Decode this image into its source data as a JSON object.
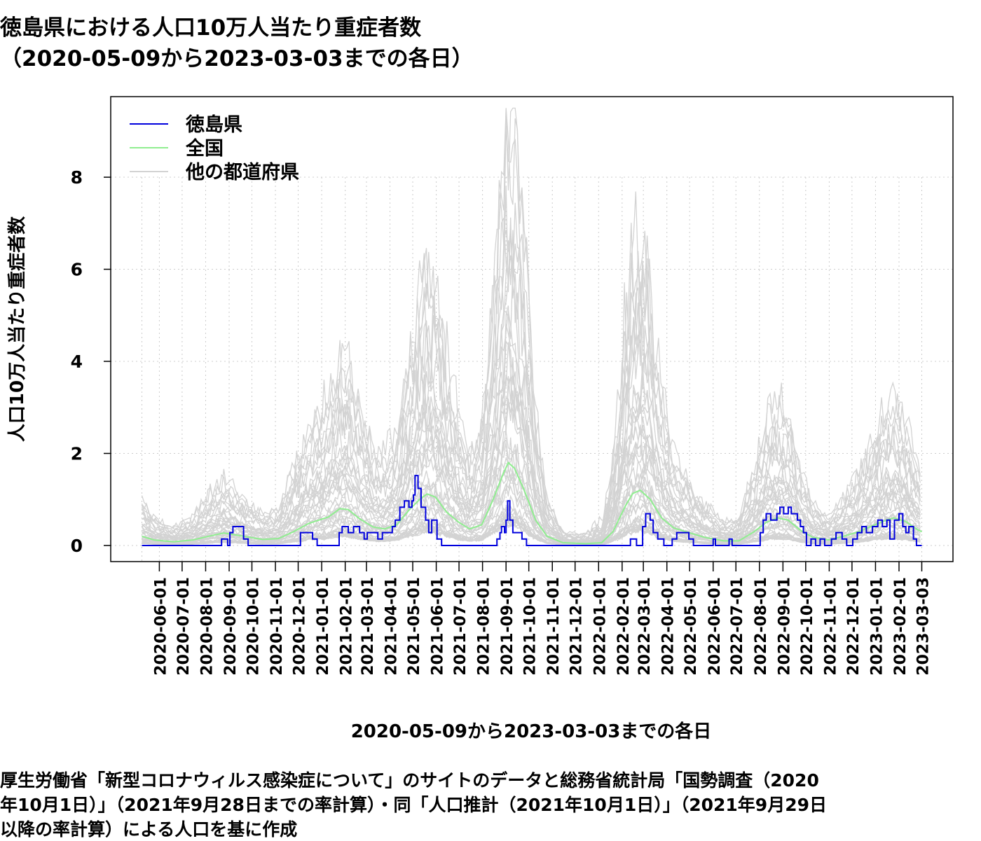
{
  "title_line1": "徳島県における人口10万人当たり重症者数",
  "title_line2": "（2020-05-09から2023-03-03までの各日）",
  "source_note": [
    "厚生労働省「新型コロナウィルス感染症について」のサイトのデータと総務省統計局「国勢調査（2020",
    "年10月1日）」（2021年9月28日までの率計算）・同「人口推計（2021年10月1日）」（2021年9月29日",
    "以降の率計算）による人口を基に作成"
  ],
  "chart_data": {
    "type": "line",
    "xlabel": "2020-05-09から2023-03-03までの各日",
    "ylabel": "人口10万人当たり重症者数",
    "x_range": [
      "2020-05-09",
      "2023-03-03"
    ],
    "ylim": [
      -0.35,
      9.75
    ],
    "yticks": [
      0,
      2,
      4,
      6,
      8
    ],
    "xticks": [
      "2020-06-01",
      "2020-07-01",
      "2020-08-01",
      "2020-09-01",
      "2020-10-01",
      "2020-11-01",
      "2020-12-01",
      "2021-01-01",
      "2021-02-01",
      "2021-03-01",
      "2021-04-01",
      "2021-05-01",
      "2021-06-01",
      "2021-07-01",
      "2021-08-01",
      "2021-09-01",
      "2021-10-01",
      "2021-11-01",
      "2021-12-01",
      "2022-01-01",
      "2022-02-01",
      "2022-03-01",
      "2022-04-01",
      "2022-05-01",
      "2022-06-01",
      "2022-07-01",
      "2022-08-01",
      "2022-09-01",
      "2022-10-01",
      "2022-11-01",
      "2022-12-01",
      "2023-01-01",
      "2023-02-01",
      "2023-03-03"
    ],
    "grid": true,
    "legend_position": "top-left",
    "legend": [
      {
        "label": "徳島県",
        "color": "#0000dd"
      },
      {
        "label": "全国",
        "color": "#90ee90"
      },
      {
        "label": "他の都道府県",
        "color": "#d3d3d3"
      }
    ],
    "series": [
      {
        "name": "徳島県",
        "color": "#0000dd",
        "points": [
          [
            "2020-05-09",
            0
          ],
          [
            "2020-08-20",
            0
          ],
          [
            "2020-08-22",
            0.14
          ],
          [
            "2020-08-28",
            0.14
          ],
          [
            "2020-08-30",
            0
          ],
          [
            "2020-09-02",
            0.28
          ],
          [
            "2020-09-06",
            0.41
          ],
          [
            "2020-09-16",
            0.41
          ],
          [
            "2020-09-20",
            0.14
          ],
          [
            "2020-09-26",
            0
          ],
          [
            "2020-11-30",
            0
          ],
          [
            "2020-12-04",
            0.28
          ],
          [
            "2020-12-16",
            0.28
          ],
          [
            "2020-12-20",
            0.14
          ],
          [
            "2020-12-26",
            0
          ],
          [
            "2021-01-20",
            0
          ],
          [
            "2021-01-24",
            0.28
          ],
          [
            "2021-01-28",
            0.41
          ],
          [
            "2021-02-05",
            0.28
          ],
          [
            "2021-02-12",
            0.41
          ],
          [
            "2021-02-20",
            0.28
          ],
          [
            "2021-02-26",
            0.14
          ],
          [
            "2021-03-02",
            0.28
          ],
          [
            "2021-03-12",
            0.28
          ],
          [
            "2021-03-16",
            0.14
          ],
          [
            "2021-03-22",
            0.28
          ],
          [
            "2021-03-30",
            0.28
          ],
          [
            "2021-04-04",
            0.41
          ],
          [
            "2021-04-08",
            0.55
          ],
          [
            "2021-04-14",
            0.83
          ],
          [
            "2021-04-20",
            0.97
          ],
          [
            "2021-04-26",
            0.83
          ],
          [
            "2021-04-30",
            0.97
          ],
          [
            "2021-05-02",
            1.1
          ],
          [
            "2021-05-04",
            1.52
          ],
          [
            "2021-05-08",
            1.24
          ],
          [
            "2021-05-12",
            0.83
          ],
          [
            "2021-05-18",
            0.55
          ],
          [
            "2021-05-22",
            0.28
          ],
          [
            "2021-05-26",
            0.55
          ],
          [
            "2021-06-02",
            0.14
          ],
          [
            "2021-06-08",
            0
          ],
          [
            "2021-08-18",
            0
          ],
          [
            "2021-08-20",
            0.14
          ],
          [
            "2021-08-24",
            0.28
          ],
          [
            "2021-08-26",
            0.41
          ],
          [
            "2021-08-30",
            0.28
          ],
          [
            "2021-09-01",
            0.55
          ],
          [
            "2021-09-03",
            0.97
          ],
          [
            "2021-09-06",
            0.55
          ],
          [
            "2021-09-10",
            0.28
          ],
          [
            "2021-09-18",
            0.28
          ],
          [
            "2021-09-22",
            0.14
          ],
          [
            "2021-09-28",
            0
          ],
          [
            "2022-02-08",
            0
          ],
          [
            "2022-02-12",
            0.14
          ],
          [
            "2022-02-16",
            0.14
          ],
          [
            "2022-02-20",
            0
          ],
          [
            "2022-02-28",
            0.41
          ],
          [
            "2022-03-04",
            0.69
          ],
          [
            "2022-03-10",
            0.55
          ],
          [
            "2022-03-14",
            0.28
          ],
          [
            "2022-03-20",
            0.14
          ],
          [
            "2022-03-28",
            0
          ],
          [
            "2022-04-08",
            0.14
          ],
          [
            "2022-04-14",
            0.28
          ],
          [
            "2022-04-24",
            0.28
          ],
          [
            "2022-04-30",
            0.14
          ],
          [
            "2022-05-06",
            0
          ],
          [
            "2022-05-30",
            0
          ],
          [
            "2022-06-01",
            0.14
          ],
          [
            "2022-06-04",
            0
          ],
          [
            "2022-06-20",
            0
          ],
          [
            "2022-06-22",
            0.14
          ],
          [
            "2022-06-26",
            0
          ],
          [
            "2022-07-28",
            0
          ],
          [
            "2022-08-02",
            0.28
          ],
          [
            "2022-08-06",
            0.55
          ],
          [
            "2022-08-10",
            0.69
          ],
          [
            "2022-08-16",
            0.55
          ],
          [
            "2022-08-24",
            0.69
          ],
          [
            "2022-08-28",
            0.83
          ],
          [
            "2022-09-02",
            0.69
          ],
          [
            "2022-09-08",
            0.83
          ],
          [
            "2022-09-12",
            0.69
          ],
          [
            "2022-09-20",
            0.55
          ],
          [
            "2022-09-24",
            0.41
          ],
          [
            "2022-09-28",
            0.28
          ],
          [
            "2022-10-02",
            0
          ],
          [
            "2022-10-08",
            0.14
          ],
          [
            "2022-10-14",
            0
          ],
          [
            "2022-10-20",
            0.14
          ],
          [
            "2022-10-26",
            0
          ],
          [
            "2022-11-04",
            0.14
          ],
          [
            "2022-11-10",
            0.28
          ],
          [
            "2022-11-18",
            0.14
          ],
          [
            "2022-11-24",
            0
          ],
          [
            "2022-12-02",
            0.14
          ],
          [
            "2022-12-08",
            0.28
          ],
          [
            "2022-12-14",
            0.41
          ],
          [
            "2022-12-20",
            0.28
          ],
          [
            "2022-12-28",
            0.41
          ],
          [
            "2023-01-04",
            0.55
          ],
          [
            "2023-01-10",
            0.41
          ],
          [
            "2023-01-16",
            0.55
          ],
          [
            "2023-01-20",
            0.14
          ],
          [
            "2023-01-26",
            0.55
          ],
          [
            "2023-02-01",
            0.69
          ],
          [
            "2023-02-06",
            0.41
          ],
          [
            "2023-02-10",
            0.28
          ],
          [
            "2023-02-14",
            0.41
          ],
          [
            "2023-02-20",
            0.14
          ],
          [
            "2023-02-24",
            0
          ],
          [
            "2023-03-03",
            0
          ]
        ]
      },
      {
        "name": "全国",
        "color": "#90ee90",
        "points": [
          [
            "2020-05-09",
            0.2
          ],
          [
            "2020-05-25",
            0.12
          ],
          [
            "2020-06-20",
            0.08
          ],
          [
            "2020-07-15",
            0.12
          ],
          [
            "2020-08-05",
            0.2
          ],
          [
            "2020-08-25",
            0.27
          ],
          [
            "2020-09-20",
            0.2
          ],
          [
            "2020-10-15",
            0.13
          ],
          [
            "2020-11-05",
            0.15
          ],
          [
            "2020-11-25",
            0.3
          ],
          [
            "2020-12-15",
            0.48
          ],
          [
            "2021-01-10",
            0.62
          ],
          [
            "2021-01-25",
            0.8
          ],
          [
            "2021-02-05",
            0.78
          ],
          [
            "2021-02-20",
            0.58
          ],
          [
            "2021-03-10",
            0.4
          ],
          [
            "2021-03-25",
            0.36
          ],
          [
            "2021-04-10",
            0.45
          ],
          [
            "2021-04-25",
            0.75
          ],
          [
            "2021-05-10",
            1.0
          ],
          [
            "2021-05-20",
            1.12
          ],
          [
            "2021-05-31",
            1.05
          ],
          [
            "2021-06-15",
            0.72
          ],
          [
            "2021-07-01",
            0.5
          ],
          [
            "2021-07-15",
            0.36
          ],
          [
            "2021-07-31",
            0.45
          ],
          [
            "2021-08-15",
            1.0
          ],
          [
            "2021-08-28",
            1.55
          ],
          [
            "2021-09-04",
            1.8
          ],
          [
            "2021-09-12",
            1.68
          ],
          [
            "2021-09-25",
            1.2
          ],
          [
            "2021-10-10",
            0.55
          ],
          [
            "2021-10-25",
            0.2
          ],
          [
            "2021-11-15",
            0.06
          ],
          [
            "2021-12-15",
            0.04
          ],
          [
            "2022-01-05",
            0.06
          ],
          [
            "2022-01-20",
            0.3
          ],
          [
            "2022-02-05",
            0.85
          ],
          [
            "2022-02-15",
            1.13
          ],
          [
            "2022-02-25",
            1.2
          ],
          [
            "2022-03-10",
            1.0
          ],
          [
            "2022-03-25",
            0.6
          ],
          [
            "2022-04-10",
            0.38
          ],
          [
            "2022-04-30",
            0.28
          ],
          [
            "2022-05-20",
            0.18
          ],
          [
            "2022-06-15",
            0.1
          ],
          [
            "2022-07-05",
            0.1
          ],
          [
            "2022-07-25",
            0.3
          ],
          [
            "2022-08-10",
            0.5
          ],
          [
            "2022-08-25",
            0.6
          ],
          [
            "2022-09-08",
            0.55
          ],
          [
            "2022-09-25",
            0.32
          ],
          [
            "2022-10-10",
            0.18
          ],
          [
            "2022-10-31",
            0.12
          ],
          [
            "2022-11-20",
            0.2
          ],
          [
            "2022-12-10",
            0.3
          ],
          [
            "2022-12-31",
            0.45
          ],
          [
            "2023-01-15",
            0.55
          ],
          [
            "2023-01-25",
            0.6
          ],
          [
            "2023-02-10",
            0.52
          ],
          [
            "2023-02-25",
            0.35
          ],
          [
            "2023-03-03",
            0.3
          ]
        ]
      }
    ]
  }
}
